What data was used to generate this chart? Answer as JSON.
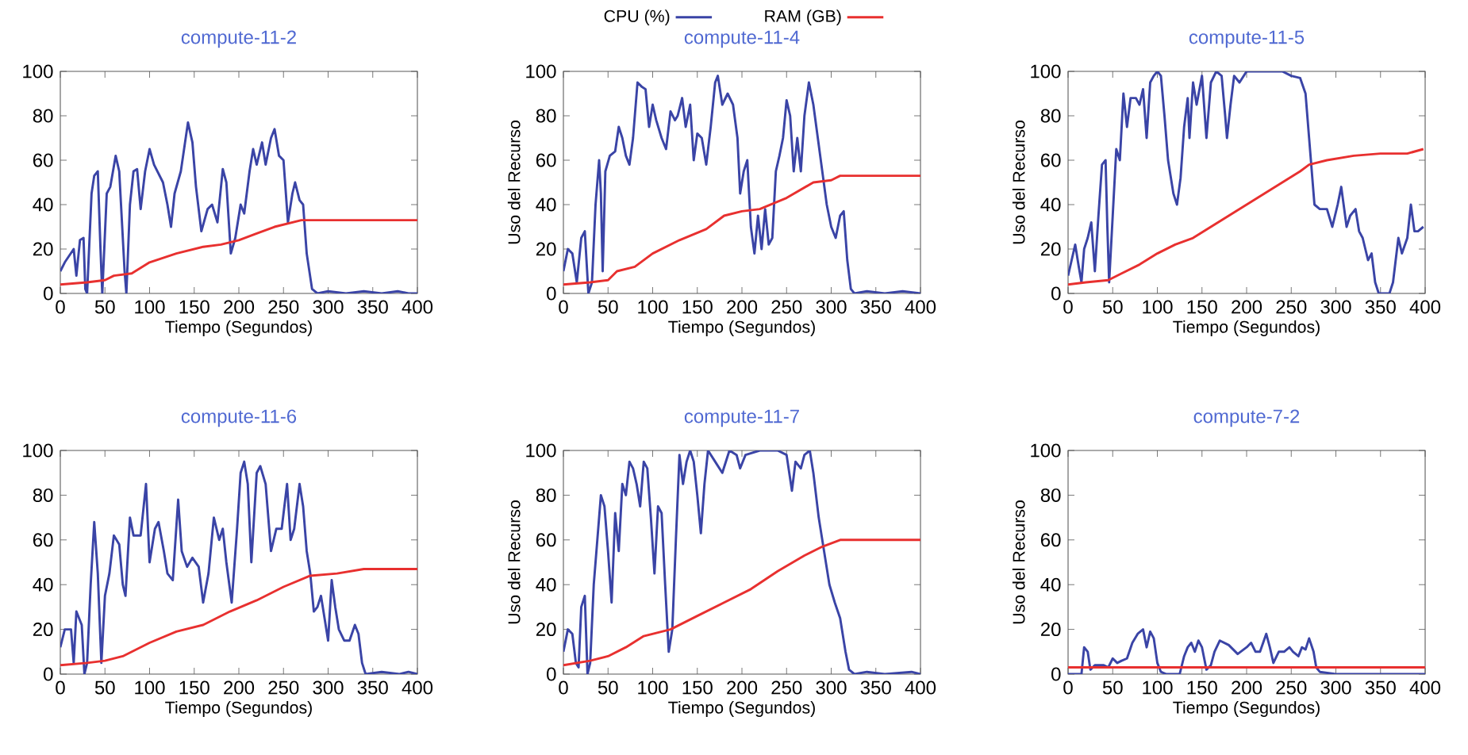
{
  "chart_data": [
    {
      "type": "line",
      "title": "compute-11-2",
      "xlabel": "Tiempo (Segundos)",
      "xlim": [
        0,
        400
      ],
      "ylim": [
        0,
        100
      ],
      "xticks": [
        0,
        50,
        100,
        150,
        200,
        250,
        300,
        350,
        400
      ],
      "yticks": [
        0,
        20,
        40,
        60,
        80,
        100
      ],
      "series": [
        {
          "color": "#3a44a6",
          "x": [
            0,
            5,
            15,
            18,
            22,
            26,
            28,
            30,
            35,
            38,
            42,
            45,
            47,
            52,
            56,
            62,
            66,
            72,
            74,
            78,
            82,
            86,
            90,
            95,
            100,
            105,
            115,
            120,
            124,
            128,
            135,
            143,
            148,
            152,
            158,
            165,
            170,
            176,
            182,
            186,
            191,
            196,
            202,
            206,
            212,
            216,
            220,
            226,
            230,
            236,
            240,
            245,
            250,
            255,
            260,
            263,
            268,
            272,
            276,
            282,
            288,
            300,
            320,
            340,
            360,
            378,
            390,
            400
          ],
          "values": [
            10,
            14,
            20,
            8,
            24,
            25,
            2,
            0,
            45,
            53,
            55,
            20,
            0,
            45,
            48,
            62,
            55,
            10,
            0,
            40,
            55,
            56,
            38,
            55,
            65,
            58,
            50,
            40,
            30,
            45,
            55,
            77,
            68,
            48,
            28,
            38,
            40,
            32,
            56,
            50,
            18,
            25,
            40,
            36,
            55,
            65,
            58,
            68,
            58,
            70,
            74,
            62,
            60,
            32,
            45,
            50,
            42,
            40,
            18,
            2,
            0,
            1,
            0,
            1,
            0,
            1,
            0,
            0
          ]
        },
        {
          "color": "#e8302f",
          "x": [
            0,
            30,
            50,
            60,
            80,
            100,
            130,
            160,
            180,
            200,
            220,
            240,
            260,
            270,
            400
          ],
          "values": [
            4,
            5,
            6,
            8,
            9,
            14,
            18,
            21,
            22,
            24,
            27,
            30,
            32,
            33,
            33
          ]
        }
      ]
    },
    {
      "type": "line",
      "title": "compute-11-4",
      "xlabel": "Tiempo (Segundos)",
      "ylabel": "Uso del Recurso",
      "legend": "top",
      "xlim": [
        0,
        400
      ],
      "ylim": [
        0,
        100
      ],
      "xticks": [
        0,
        50,
        100,
        150,
        200,
        250,
        300,
        350,
        400
      ],
      "yticks": [
        0,
        20,
        40,
        60,
        80,
        100
      ],
      "series": [
        {
          "name": "CPU (%)",
          "color": "#3a44a6",
          "x": [
            0,
            5,
            10,
            15,
            20,
            24,
            28,
            32,
            36,
            40,
            42,
            44,
            47,
            52,
            58,
            62,
            66,
            70,
            74,
            78,
            83,
            88,
            92,
            96,
            100,
            104,
            110,
            115,
            120,
            125,
            128,
            133,
            137,
            142,
            146,
            150,
            155,
            160,
            165,
            170,
            173,
            178,
            184,
            190,
            195,
            198,
            202,
            206,
            210,
            214,
            218,
            222,
            226,
            230,
            234,
            238,
            242,
            246,
            250,
            254,
            258,
            262,
            266,
            270,
            275,
            280,
            285,
            290,
            295,
            300,
            305,
            310,
            314,
            318,
            322,
            326,
            340,
            360,
            380,
            400
          ],
          "values": [
            10,
            20,
            18,
            5,
            25,
            28,
            0,
            5,
            40,
            60,
            45,
            10,
            55,
            62,
            64,
            75,
            70,
            62,
            58,
            70,
            95,
            93,
            92,
            75,
            85,
            78,
            70,
            65,
            82,
            78,
            80,
            88,
            75,
            85,
            60,
            72,
            70,
            58,
            75,
            95,
            98,
            85,
            90,
            85,
            70,
            45,
            55,
            60,
            30,
            18,
            35,
            20,
            38,
            22,
            25,
            55,
            62,
            70,
            87,
            80,
            55,
            70,
            55,
            80,
            95,
            85,
            70,
            55,
            40,
            30,
            25,
            35,
            37,
            15,
            2,
            0,
            1,
            0,
            1,
            0
          ]
        },
        {
          "name": "RAM (GB)",
          "color": "#e8302f",
          "x": [
            0,
            30,
            50,
            60,
            80,
            100,
            130,
            160,
            180,
            200,
            220,
            250,
            280,
            300,
            310,
            400
          ],
          "values": [
            4,
            5,
            6,
            10,
            12,
            18,
            24,
            29,
            35,
            37,
            38,
            43,
            50,
            51,
            53,
            53
          ]
        }
      ]
    },
    {
      "type": "line",
      "title": "compute-11-5",
      "xlabel": "Tiempo (Segundos)",
      "ylabel": "Uso del Recurso",
      "xlim": [
        0,
        400
      ],
      "ylim": [
        0,
        100
      ],
      "xticks": [
        0,
        50,
        100,
        150,
        200,
        250,
        300,
        350,
        400
      ],
      "yticks": [
        0,
        20,
        40,
        60,
        80,
        100
      ],
      "series": [
        {
          "color": "#3a44a6",
          "x": [
            0,
            4,
            8,
            12,
            15,
            18,
            22,
            26,
            30,
            34,
            38,
            42,
            44,
            46,
            50,
            54,
            58,
            62,
            66,
            70,
            76,
            80,
            84,
            88,
            92,
            96,
            100,
            104,
            108,
            112,
            118,
            122,
            126,
            130,
            134,
            136,
            140,
            144,
            150,
            155,
            160,
            166,
            172,
            176,
            178,
            182,
            186,
            192,
            200,
            220,
            240,
            250,
            260,
            266,
            270,
            276,
            282,
            290,
            296,
            302,
            306,
            312,
            316,
            322,
            326,
            330,
            336,
            340,
            344,
            348,
            360,
            364,
            370,
            374,
            380,
            384,
            388,
            392,
            398
          ],
          "values": [
            8,
            15,
            22,
            12,
            5,
            20,
            25,
            32,
            10,
            35,
            58,
            60,
            30,
            5,
            35,
            65,
            60,
            90,
            75,
            88,
            88,
            85,
            92,
            70,
            95,
            98,
            100,
            98,
            80,
            60,
            45,
            40,
            52,
            75,
            88,
            70,
            95,
            85,
            98,
            70,
            95,
            100,
            98,
            80,
            70,
            85,
            98,
            95,
            100,
            100,
            100,
            98,
            97,
            90,
            70,
            40,
            38,
            38,
            30,
            40,
            48,
            30,
            35,
            38,
            28,
            25,
            15,
            18,
            5,
            0,
            0,
            5,
            25,
            18,
            25,
            40,
            28,
            28,
            30
          ]
        },
        {
          "color": "#e8302f",
          "x": [
            0,
            20,
            45,
            60,
            80,
            100,
            120,
            140,
            160,
            180,
            200,
            220,
            240,
            260,
            270,
            290,
            320,
            350,
            380,
            398
          ],
          "values": [
            4,
            5,
            6,
            9,
            13,
            18,
            22,
            25,
            30,
            35,
            40,
            45,
            50,
            55,
            58,
            60,
            62,
            63,
            63,
            65
          ]
        }
      ]
    },
    {
      "type": "line",
      "title": "compute-11-6",
      "xlabel": "Tiempo (Segundos)",
      "xlim": [
        0,
        400
      ],
      "ylim": [
        0,
        100
      ],
      "xticks": [
        0,
        50,
        100,
        150,
        200,
        250,
        300,
        350,
        400
      ],
      "yticks": [
        0,
        20,
        40,
        60,
        80,
        100
      ],
      "series": [
        {
          "color": "#3a44a6",
          "x": [
            0,
            5,
            12,
            15,
            18,
            24,
            27,
            30,
            34,
            38,
            42,
            46,
            50,
            55,
            60,
            66,
            70,
            73,
            78,
            82,
            90,
            96,
            100,
            106,
            110,
            116,
            120,
            126,
            132,
            136,
            142,
            148,
            155,
            160,
            166,
            172,
            178,
            182,
            186,
            192,
            198,
            202,
            206,
            210,
            214,
            220,
            224,
            230,
            236,
            242,
            248,
            254,
            258,
            262,
            268,
            272,
            276,
            280,
            284,
            288,
            292,
            296,
            300,
            304,
            308,
            312,
            318,
            324,
            330,
            334,
            338,
            342,
            360,
            380,
            390,
            400
          ],
          "values": [
            12,
            20,
            20,
            5,
            28,
            22,
            0,
            5,
            40,
            68,
            45,
            5,
            35,
            45,
            62,
            58,
            40,
            35,
            70,
            62,
            62,
            85,
            50,
            65,
            68,
            55,
            45,
            42,
            78,
            55,
            48,
            52,
            48,
            32,
            45,
            70,
            60,
            65,
            50,
            32,
            65,
            90,
            95,
            85,
            50,
            90,
            93,
            85,
            55,
            65,
            65,
            85,
            60,
            65,
            85,
            75,
            55,
            45,
            28,
            30,
            35,
            25,
            15,
            42,
            30,
            20,
            15,
            15,
            22,
            18,
            5,
            0,
            1,
            0,
            1,
            0
          ]
        },
        {
          "color": "#e8302f",
          "x": [
            0,
            30,
            50,
            70,
            100,
            130,
            160,
            190,
            220,
            250,
            280,
            310,
            340,
            400
          ],
          "values": [
            4,
            5,
            6,
            8,
            14,
            19,
            22,
            28,
            33,
            39,
            44,
            45,
            47,
            47
          ]
        }
      ]
    },
    {
      "type": "line",
      "title": "compute-11-7",
      "xlabel": "Tiempo (Segundos)",
      "ylabel": "Uso del Recurso",
      "xlim": [
        0,
        400
      ],
      "ylim": [
        0,
        100
      ],
      "xticks": [
        0,
        50,
        100,
        150,
        200,
        250,
        300,
        350,
        400
      ],
      "yticks": [
        0,
        20,
        40,
        60,
        80,
        100
      ],
      "series": [
        {
          "color": "#3a44a6",
          "x": [
            0,
            5,
            10,
            14,
            17,
            20,
            24,
            27,
            30,
            34,
            38,
            42,
            46,
            50,
            54,
            58,
            62,
            66,
            70,
            74,
            78,
            82,
            86,
            90,
            94,
            98,
            102,
            106,
            110,
            114,
            118,
            122,
            126,
            130,
            134,
            138,
            142,
            146,
            150,
            154,
            158,
            162,
            170,
            178,
            186,
            194,
            198,
            204,
            220,
            240,
            250,
            256,
            260,
            266,
            270,
            276,
            280,
            286,
            292,
            298,
            304,
            310,
            316,
            320,
            326,
            340,
            360,
            390,
            400
          ],
          "values": [
            10,
            20,
            18,
            5,
            3,
            30,
            35,
            0,
            5,
            40,
            60,
            80,
            75,
            55,
            32,
            72,
            55,
            85,
            80,
            95,
            92,
            85,
            75,
            95,
            92,
            70,
            45,
            75,
            72,
            40,
            10,
            20,
            60,
            98,
            85,
            95,
            100,
            95,
            80,
            63,
            85,
            100,
            95,
            90,
            100,
            98,
            92,
            98,
            100,
            100,
            98,
            82,
            95,
            92,
            98,
            100,
            90,
            70,
            55,
            40,
            32,
            25,
            10,
            2,
            0,
            1,
            0,
            1,
            0
          ]
        },
        {
          "color": "#e8302f",
          "x": [
            0,
            30,
            50,
            70,
            90,
            120,
            150,
            180,
            210,
            240,
            270,
            290,
            310,
            400
          ],
          "values": [
            4,
            6,
            8,
            12,
            17,
            20,
            26,
            32,
            38,
            46,
            53,
            57,
            60,
            60
          ]
        }
      ]
    },
    {
      "type": "line",
      "title": "compute-7-2",
      "xlabel": "Tiempo (Segundos)",
      "ylabel": "Uso del Recurso",
      "xlim": [
        0,
        400
      ],
      "ylim": [
        0,
        100
      ],
      "xticks": [
        0,
        50,
        100,
        150,
        200,
        250,
        300,
        350,
        400
      ],
      "yticks": [
        0,
        20,
        40,
        60,
        80,
        100
      ],
      "series": [
        {
          "color": "#3a44a6",
          "x": [
            0,
            15,
            18,
            22,
            25,
            30,
            40,
            45,
            50,
            55,
            60,
            66,
            72,
            78,
            84,
            88,
            92,
            96,
            100,
            104,
            110,
            125,
            130,
            134,
            138,
            142,
            146,
            150,
            155,
            160,
            164,
            170,
            180,
            190,
            200,
            205,
            210,
            215,
            222,
            226,
            230,
            236,
            242,
            248,
            252,
            258,
            262,
            266,
            270,
            275,
            278,
            282,
            300,
            340,
            360,
            400
          ],
          "values": [
            0,
            0,
            12,
            10,
            2,
            4,
            4,
            3,
            7,
            5,
            6,
            7,
            14,
            18,
            20,
            12,
            19,
            16,
            5,
            1,
            0,
            0,
            8,
            12,
            14,
            10,
            15,
            12,
            2,
            4,
            10,
            15,
            13,
            9,
            12,
            14,
            10,
            10,
            18,
            12,
            5,
            10,
            10,
            12,
            10,
            8,
            12,
            11,
            16,
            10,
            3,
            1,
            0,
            0,
            0,
            0
          ]
        },
        {
          "color": "#e8302f",
          "x": [
            0,
            400
          ],
          "values": [
            3,
            3
          ]
        }
      ]
    }
  ]
}
